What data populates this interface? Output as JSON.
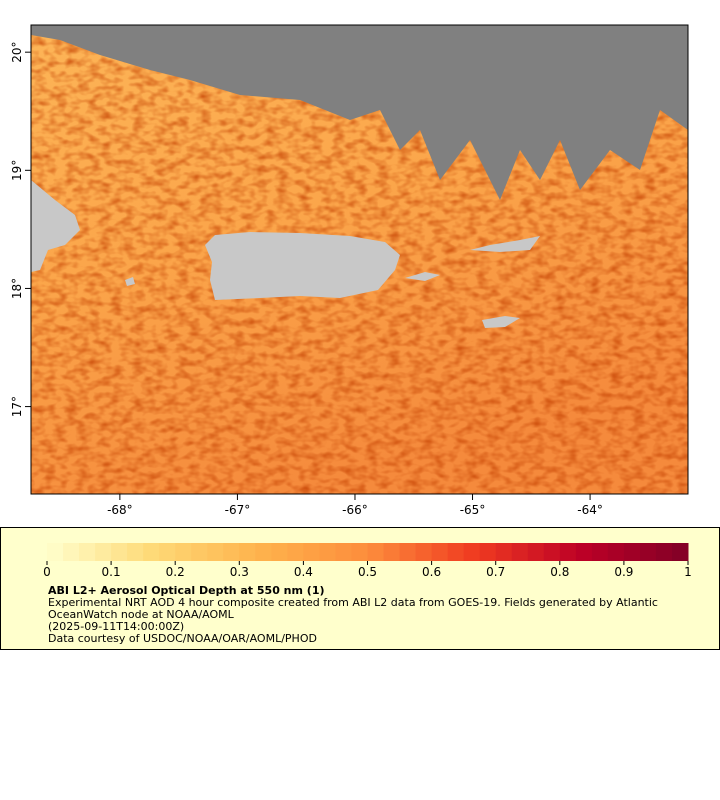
{
  "map": {
    "xlim": [
      -68.756,
      -63.167
    ],
    "ylim": [
      16.26,
      20.23
    ],
    "xticks": [
      {
        "value": -68,
        "label": "-68°"
      },
      {
        "value": -67,
        "label": "-67°"
      },
      {
        "value": -66,
        "label": "-66°"
      },
      {
        "value": -65,
        "label": "-65°"
      },
      {
        "value": -64,
        "label": "-64°"
      }
    ],
    "yticks": [
      {
        "value": 20,
        "label": "20°"
      },
      {
        "value": 19,
        "label": "19°"
      },
      {
        "value": 18,
        "label": "18°"
      },
      {
        "value": 17,
        "label": "17°"
      }
    ]
  },
  "colorbar": {
    "lim": [
      0,
      1
    ],
    "ticks": [
      0,
      0.1,
      0.2,
      0.3,
      0.4,
      0.5,
      0.6,
      0.7,
      0.8,
      0.9,
      1
    ],
    "colors": [
      "#ffffcc",
      "#fed976",
      "#feb24c",
      "#fd8d3c",
      "#f03b20",
      "#bd0026",
      "#800026"
    ],
    "steps": 40
  },
  "legend": {
    "title": "ABI L2+ Aerosol Optical Depth at 550 nm (1)",
    "lines": [
      "Experimental NRT AOD 4 hour composite created from ABI L2 data from GOES-19. Fields generated by Atlantic",
      "OceanWatch node at NOAA/AOML",
      "(2025-09-11T14:00:00Z)",
      "Data courtesy of USDOC/NOAA/OAR/AOML/PHOD"
    ]
  }
}
